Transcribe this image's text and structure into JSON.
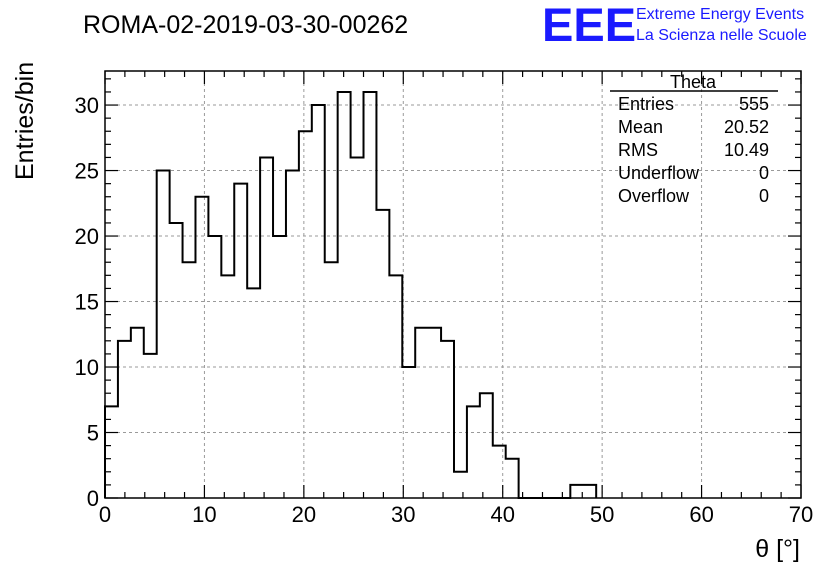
{
  "header": {
    "run_title": "ROMA-02-2019-03-30-00262",
    "logo_text": "EEE",
    "logo_line1": "Extreme Energy Events",
    "logo_line2": "La Scienza nelle Scuole"
  },
  "stats_box": {
    "title": "Theta",
    "rows": [
      {
        "label": "Entries",
        "value": "555"
      },
      {
        "label": "Mean",
        "value": "20.52"
      },
      {
        "label": "RMS",
        "value": "10.49"
      },
      {
        "label": "Underflow",
        "value": "0"
      },
      {
        "label": "Overflow",
        "value": "0"
      }
    ]
  },
  "colors": {
    "logo": "#1a1aff",
    "line": "#000000",
    "grid": "#9a9a9a"
  },
  "chart_data": {
    "type": "bar",
    "style": "step-histogram",
    "bin_width": 1.3,
    "x_start": 0,
    "values": [
      7,
      12,
      13,
      11,
      25,
      21,
      18,
      23,
      20,
      17,
      24,
      16,
      26,
      20,
      25,
      28,
      30,
      18,
      31,
      26,
      31,
      22,
      17,
      10,
      13,
      13,
      12,
      2,
      7,
      8,
      4,
      3,
      0,
      0,
      0,
      0,
      1,
      1
    ],
    "xlabel": "θ [°]",
    "ylabel": "Entries/bin",
    "xlim": [
      0,
      70
    ],
    "ylim": [
      0,
      32.6
    ],
    "xticks": [
      0,
      10,
      20,
      30,
      40,
      50,
      60,
      70
    ],
    "yticks": [
      0,
      5,
      10,
      15,
      20,
      25,
      30
    ],
    "grid": true
  }
}
